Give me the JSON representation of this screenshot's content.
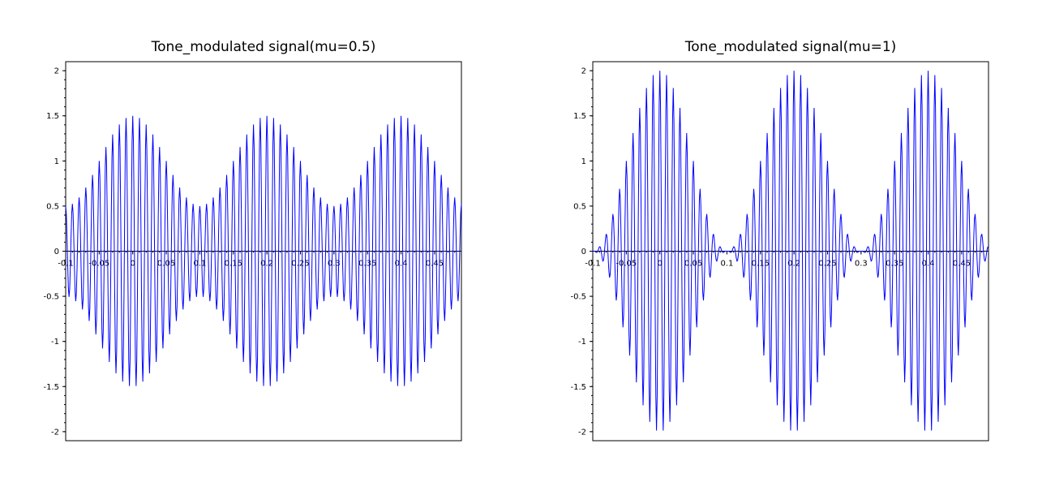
{
  "chart_data": [
    {
      "type": "line",
      "title": "Tone_modulated signal(mu=0.5)",
      "xlabel": "",
      "ylabel": "",
      "xlim": [
        -0.1,
        0.49
      ],
      "ylim": [
        -2.1,
        2.1
      ],
      "grid": false,
      "legend": "none",
      "x_ticks": [
        -0.1,
        -0.05,
        0,
        0.05,
        0.1,
        0.15,
        0.2,
        0.25,
        0.3,
        0.35,
        0.4,
        0.45
      ],
      "x_tick_labels": [
        "-0.1",
        "-0.05",
        "0",
        "0.05",
        "0.1",
        "0.15",
        "0.2",
        "0.25",
        "0.3",
        "0.35",
        "0.4",
        "0.45"
      ],
      "y_ticks": [
        -2,
        -1.5,
        -1,
        -0.5,
        0,
        0.5,
        1,
        1.5,
        2
      ],
      "y_tick_labels": [
        "-2",
        "-1.5",
        "-1",
        "-0.5",
        "0",
        "0.5",
        "1",
        "1.5",
        "2"
      ],
      "series": [
        {
          "color": "#0000ff",
          "function": "y = (1 + mu*cos(2*pi*fm*t)) * cos(2*pi*fc*t)",
          "mu": 0.5,
          "fm": 5,
          "fc": 100,
          "t_range": [
            -0.1,
            0.49
          ],
          "t_step": 0.001
        }
      ]
    },
    {
      "type": "line",
      "title": "Tone_modulated signal(mu=1)",
      "xlabel": "",
      "ylabel": "",
      "xlim": [
        -0.1,
        0.49
      ],
      "ylim": [
        -2.1,
        2.1
      ],
      "grid": false,
      "legend": "none",
      "x_ticks": [
        -0.1,
        -0.05,
        0,
        0.05,
        0.1,
        0.15,
        0.2,
        0.25,
        0.3,
        0.35,
        0.4,
        0.45
      ],
      "x_tick_labels": [
        "-0.1",
        "-0.05",
        "0",
        "0.05",
        "0.1",
        "0.15",
        "0.2",
        "0.25",
        "0.3",
        "0.35",
        "0.4",
        "0.45"
      ],
      "y_ticks": [
        -2,
        -1.5,
        -1,
        -0.5,
        0,
        0.5,
        1,
        1.5,
        2
      ],
      "y_tick_labels": [
        "-2",
        "-1.5",
        "-1",
        "-0.5",
        "0",
        "0.5",
        "1",
        "1.5",
        "2"
      ],
      "series": [
        {
          "color": "#0000ff",
          "function": "y = (1 + mu*cos(2*pi*fm*t)) * cos(2*pi*fc*t)",
          "mu": 1,
          "fm": 5,
          "fc": 100,
          "t_range": [
            -0.1,
            0.49
          ],
          "t_step": 0.001
        }
      ]
    }
  ]
}
